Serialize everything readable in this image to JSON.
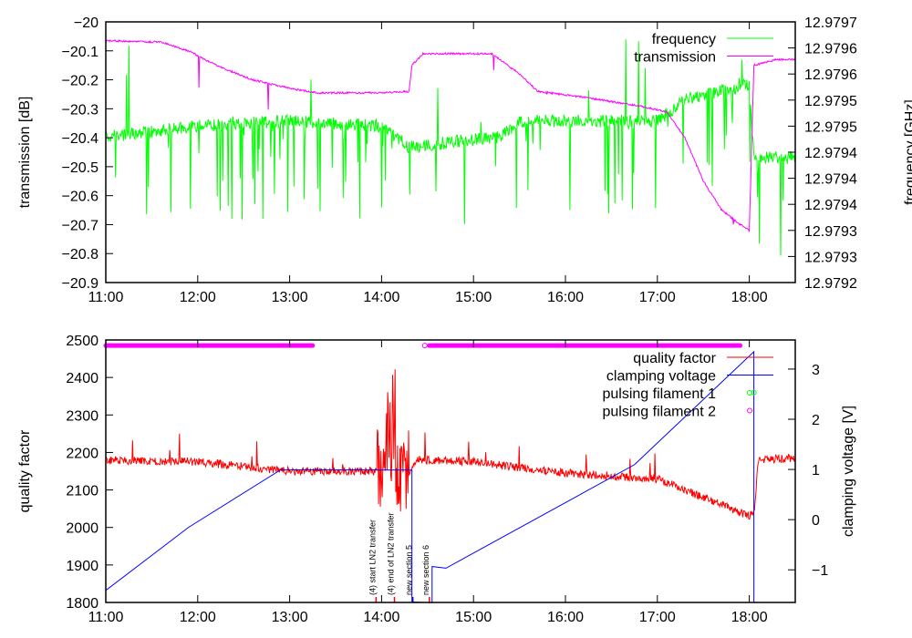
{
  "chart_data": [
    {
      "type": "line",
      "xlabel": "",
      "ylabel": "transmission [dB]",
      "y2label": "frequency [GHz]",
      "xlim": [
        11,
        18.5
      ],
      "ylim": [
        -20.9,
        -20
      ],
      "y2lim": [
        12.9792,
        12.9797
      ],
      "xticks": [
        "11:00",
        "12:00",
        "13:00",
        "14:00",
        "15:00",
        "16:00",
        "17:00",
        "18:00"
      ],
      "yticks": [
        "-20",
        "-20.1",
        "-20.2",
        "-20.3",
        "-20.4",
        "-20.5",
        "-20.6",
        "-20.7",
        "-20.8",
        "-20.9"
      ],
      "y2ticks": [
        "12.9797",
        "12.9796",
        "12.9796",
        "12.9795",
        "12.9795",
        "12.9794",
        "12.9794",
        "12.9794",
        "12.9793",
        "12.9793",
        "12.9792"
      ],
      "legend": "top-right",
      "series": [
        {
          "name": "frequency",
          "color": "#00ff00",
          "axis": "y2",
          "points": [
            [
              11,
              12.97948
            ],
            [
              12,
              12.9795
            ],
            [
              13,
              12.97951
            ],
            [
              14,
              12.9795
            ],
            [
              14.3,
              12.97946
            ],
            [
              15.3,
              12.97948
            ],
            [
              15.5,
              12.97951
            ],
            [
              17,
              12.97951
            ],
            [
              17.3,
              12.97955
            ],
            [
              18,
              12.97958
            ],
            [
              18.05,
              12.97944
            ],
            [
              18.5,
              12.97944
            ]
          ]
        },
        {
          "name": "transmission",
          "color": "#ff00ff",
          "axis": "y",
          "points": [
            [
              11,
              -20.065
            ],
            [
              11.6,
              -20.07
            ],
            [
              11.9,
              -20.1
            ],
            [
              12.2,
              -20.15
            ],
            [
              12.6,
              -20.2
            ],
            [
              13,
              -20.23
            ],
            [
              13.3,
              -20.245
            ],
            [
              14,
              -20.245
            ],
            [
              14.3,
              -20.24
            ],
            [
              14.33,
              -20.15
            ],
            [
              14.45,
              -20.11
            ],
            [
              15.2,
              -20.11
            ],
            [
              15.5,
              -20.18
            ],
            [
              15.7,
              -20.24
            ],
            [
              16.2,
              -20.26
            ],
            [
              16.8,
              -20.29
            ],
            [
              17.1,
              -20.31
            ],
            [
              17.3,
              -20.4
            ],
            [
              17.5,
              -20.55
            ],
            [
              17.7,
              -20.65
            ],
            [
              17.9,
              -20.7
            ],
            [
              18,
              -20.72
            ],
            [
              18.05,
              -20.15
            ],
            [
              18.3,
              -20.13
            ],
            [
              18.5,
              -20.13
            ]
          ]
        }
      ]
    },
    {
      "type": "line",
      "xlabel": "",
      "ylabel": "quality factor",
      "y2label": "clamping voltage [V]",
      "xlim": [
        11,
        18.5
      ],
      "ylim": [
        1800,
        2500
      ],
      "y2lim": [
        -1.65,
        3.58
      ],
      "xticks": [
        "11:00",
        "12:00",
        "13:00",
        "14:00",
        "15:00",
        "16:00",
        "17:00",
        "18:00"
      ],
      "yticks": [
        "2500",
        "2400",
        "2300",
        "2200",
        "2100",
        "2000",
        "1900",
        "1800"
      ],
      "y2ticks": [
        "3",
        "2",
        "1",
        "0",
        "-1"
      ],
      "legend": "top-right",
      "series": [
        {
          "name": "quality factor",
          "color": "#ff0000",
          "axis": "y",
          "points": [
            [
              11,
              2180
            ],
            [
              12,
              2175
            ],
            [
              13,
              2150
            ],
            [
              14,
              2150
            ],
            [
              14.3,
              2150
            ],
            [
              14.4,
              2180
            ],
            [
              15,
              2175
            ],
            [
              16,
              2145
            ],
            [
              17,
              2130
            ],
            [
              17.5,
              2080
            ],
            [
              18,
              2030
            ],
            [
              18.05,
              2035
            ],
            [
              18.1,
              2180
            ],
            [
              18.5,
              2185
            ]
          ]
        },
        {
          "name": "clamping voltage",
          "color": "#0000ff",
          "axis": "y2",
          "points": [
            [
              11,
              -1.4
            ],
            [
              11.9,
              -0.15
            ],
            [
              12.9,
              1.0
            ],
            [
              14.33,
              1.0
            ],
            [
              14.33,
              -1.65
            ],
            [
              14.55,
              -1.65
            ],
            [
              14.55,
              -0.95
            ],
            [
              14.7,
              -0.95
            ],
            [
              16.75,
              1.1
            ],
            [
              18.05,
              3.35
            ],
            [
              18.05,
              -1.65
            ]
          ]
        },
        {
          "name": "pulsing filament 1",
          "color": "#00ff00",
          "axis": "y",
          "points": [
            [
              18.05,
              2360
            ]
          ]
        },
        {
          "name": "pulsing filament 2",
          "color": "#ff00ff",
          "axis": "y",
          "segments": [
            [
              11,
              13.25
            ],
            [
              14.52,
              17.9
            ]
          ],
          "value": 2485,
          "points": [
            [
              14.47,
              2485
            ]
          ]
        }
      ],
      "annotations": [
        {
          "text": "(4) start LN2 transfer",
          "x": 13.94,
          "color": "#ff0000"
        },
        {
          "text": "(4) end of LN2 transfer",
          "x": 14.14,
          "color": "#ff0000"
        },
        {
          "text": "new section 5",
          "x": 14.34,
          "color": "#0000ff"
        },
        {
          "text": "new section 6",
          "x": 14.52,
          "color": "#ff0000"
        }
      ]
    }
  ]
}
